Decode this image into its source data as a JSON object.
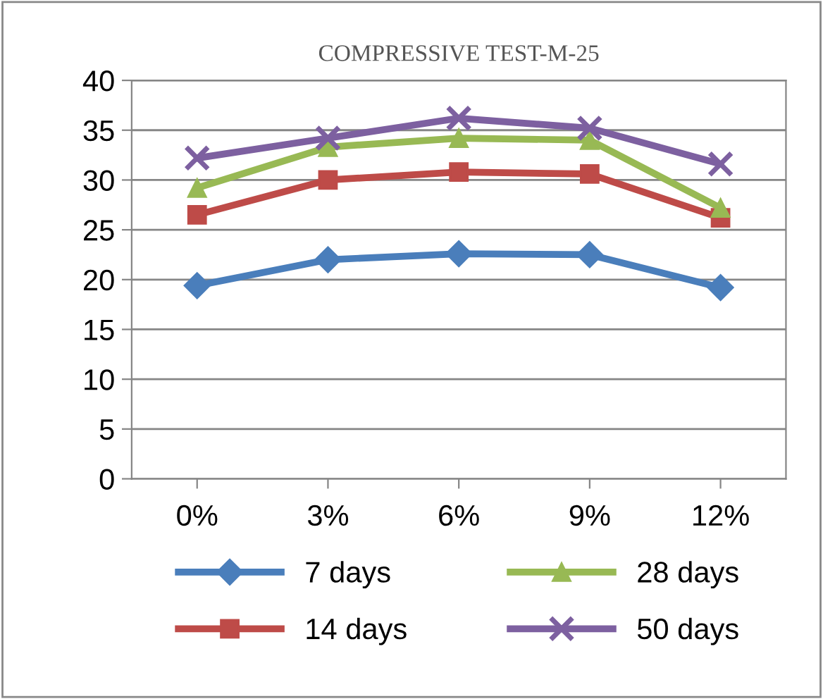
{
  "chart_data": {
    "type": "line",
    "title": "COMPRESSIVE TEST-M-25",
    "categories": [
      "0%",
      "3%",
      "6%",
      "9%",
      "12%"
    ],
    "series": [
      {
        "name": "7 days",
        "color": "#4a7ebb",
        "marker": "diamond",
        "values": [
          19.4,
          22.0,
          22.6,
          22.5,
          19.2
        ]
      },
      {
        "name": "14 days",
        "color": "#be4b48",
        "marker": "square",
        "values": [
          26.5,
          30.0,
          30.8,
          30.6,
          26.2
        ]
      },
      {
        "name": "28 days",
        "color": "#98b954",
        "marker": "triangle",
        "values": [
          29.2,
          33.3,
          34.2,
          34.0,
          27.2
        ]
      },
      {
        "name": "50 days",
        "color": "#7d60a0",
        "marker": "cross",
        "values": [
          32.2,
          34.2,
          36.2,
          35.2,
          31.6
        ]
      }
    ],
    "ylim": [
      0,
      40
    ],
    "yticks": [
      0,
      5,
      10,
      15,
      20,
      25,
      30,
      35,
      40
    ],
    "grid": "y",
    "legend": "bottom",
    "line_style": "solid"
  }
}
